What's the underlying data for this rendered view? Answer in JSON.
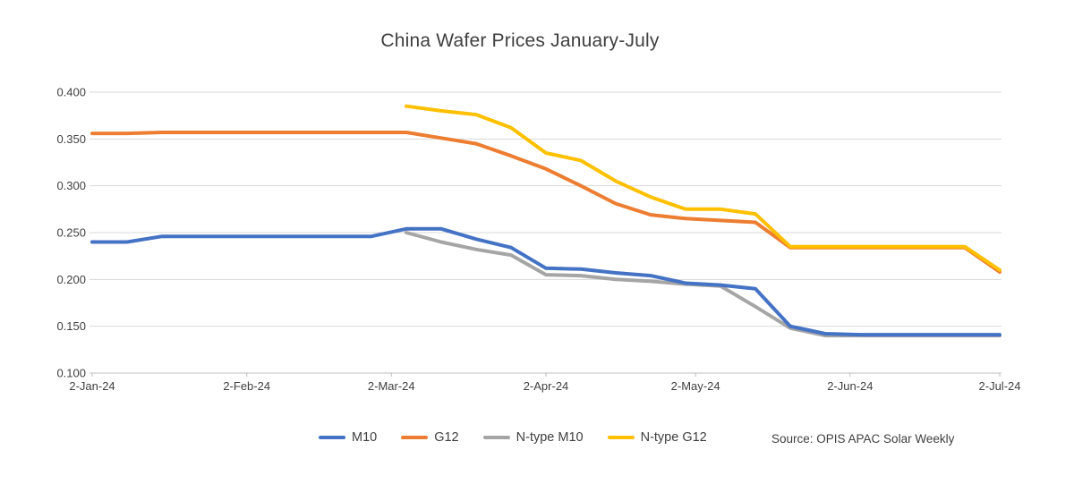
{
  "title": "China Wafer Prices January-July",
  "source": "Source: OPIS APAC Solar Weekly",
  "chart_data": {
    "type": "line",
    "title": "China Wafer Prices January-July",
    "x": [
      "2-Jan-24",
      "9-Jan-24",
      "16-Jan-24",
      "23-Jan-24",
      "30-Jan-24",
      "6-Feb-24",
      "13-Feb-24",
      "20-Feb-24",
      "27-Feb-24",
      "5-Mar-24",
      "12-Mar-24",
      "19-Mar-24",
      "26-Mar-24",
      "2-Apr-24",
      "9-Apr-24",
      "16-Apr-24",
      "23-Apr-24",
      "30-Apr-24",
      "7-May-24",
      "14-May-24",
      "21-May-24",
      "28-May-24",
      "4-Jun-24",
      "11-Jun-24",
      "18-Jun-24",
      "25-Jun-24",
      "2-Jul-24"
    ],
    "x_days": [
      0,
      7,
      14,
      21,
      28,
      35,
      42,
      49,
      56,
      63,
      70,
      77,
      84,
      91,
      98,
      105,
      112,
      119,
      126,
      133,
      140,
      147,
      154,
      161,
      168,
      175,
      182
    ],
    "series": [
      {
        "name": "M10",
        "color": "#4472C4",
        "values": [
          0.24,
          0.24,
          0.246,
          0.246,
          0.246,
          0.246,
          0.246,
          0.246,
          0.246,
          0.254,
          0.254,
          0.243,
          0.234,
          0.212,
          0.211,
          0.207,
          0.204,
          0.196,
          0.194,
          0.19,
          0.15,
          0.142,
          0.141,
          0.141,
          0.141,
          0.141,
          0.141
        ]
      },
      {
        "name": "G12",
        "color": "#ED7D31",
        "values": [
          0.356,
          0.356,
          0.357,
          0.357,
          0.357,
          0.357,
          0.357,
          0.357,
          0.357,
          0.357,
          0.351,
          0.345,
          0.332,
          0.318,
          0.3,
          0.281,
          0.269,
          0.265,
          0.263,
          0.261,
          0.234,
          0.234,
          0.234,
          0.234,
          0.234,
          0.234,
          0.208
        ]
      },
      {
        "name": "N-type M10",
        "color": "#A5A5A5",
        "values": [
          null,
          null,
          null,
          null,
          null,
          null,
          null,
          null,
          null,
          0.25,
          0.24,
          0.232,
          0.226,
          0.205,
          0.204,
          0.2,
          0.198,
          0.195,
          0.193,
          0.171,
          0.148,
          0.14,
          0.14,
          0.14,
          0.14,
          0.14,
          0.14
        ]
      },
      {
        "name": "N-type G12",
        "color": "#FFC000",
        "values": [
          null,
          null,
          null,
          null,
          null,
          null,
          null,
          null,
          null,
          0.385,
          0.38,
          0.376,
          0.362,
          0.335,
          0.327,
          0.305,
          0.288,
          0.275,
          0.275,
          0.27,
          0.235,
          0.235,
          0.235,
          0.235,
          0.235,
          0.235,
          0.21
        ]
      }
    ],
    "x_tick_labels": [
      "2-Jan-24",
      "2-Feb-24",
      "2-Mar-24",
      "2-Apr-24",
      "2-May-24",
      "2-Jun-24",
      "2-Jul-24"
    ],
    "x_tick_days": [
      0,
      31,
      60,
      91,
      121,
      152,
      182
    ],
    "y_ticks": [
      0.4,
      0.35,
      0.3,
      0.25,
      0.2,
      0.15,
      0.1
    ],
    "y_tick_labels": [
      "0.400",
      "0.350",
      "0.300",
      "0.250",
      "0.200",
      "0.150",
      "0.100"
    ],
    "ylim": [
      0.1,
      0.4
    ],
    "xlabel": "",
    "ylabel": "",
    "grid": "horizontal",
    "legend_position": "bottom",
    "grid_color": "#D9D9D9",
    "axis_color": "#BFBFBF",
    "text_color": "#404040"
  }
}
